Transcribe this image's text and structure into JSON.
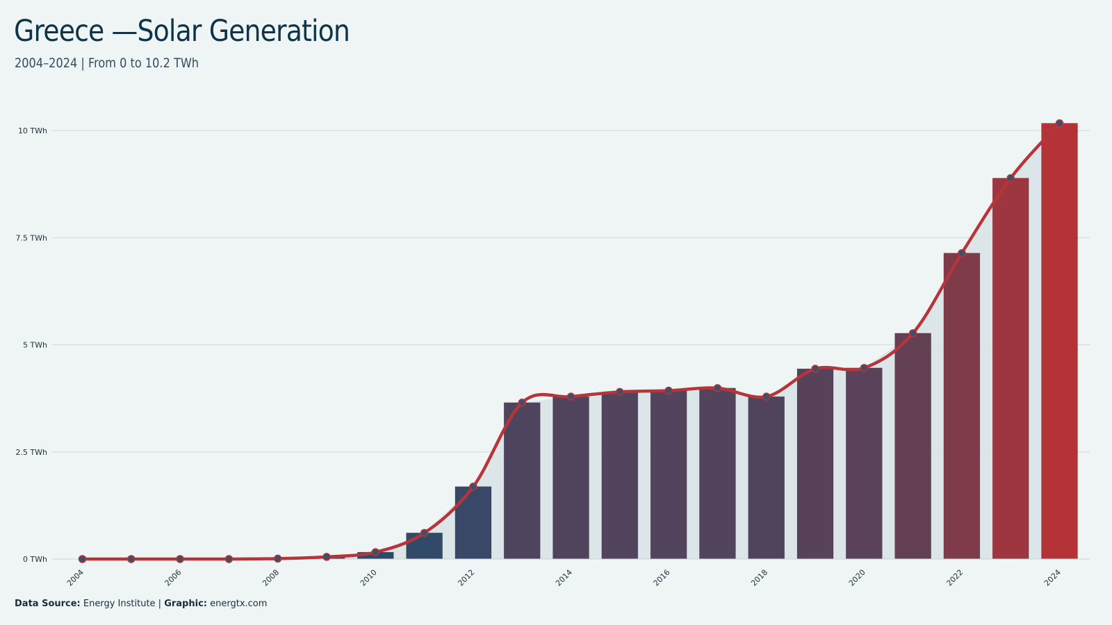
{
  "header": {
    "title": "Greece —Solar Generation",
    "subtitle": "2004–2024 | From 0 to 10.2 TWh"
  },
  "footer": {
    "source_label": "Data Source:",
    "source_value": "Energy Institute |",
    "graphic_label": "Graphic:",
    "graphic_value": "energtx.com"
  },
  "chart_data": {
    "type": "bar",
    "title": "Greece —Solar Generation",
    "subtitle": "2004–2024 | From 0 to 10.2 TWh",
    "xlabel": "",
    "ylabel": "",
    "unit": "TWh",
    "ylim": [
      0,
      10.5
    ],
    "y_ticks": [
      0,
      2.5,
      5,
      7.5,
      10
    ],
    "y_tick_labels": [
      "0 TWh",
      "2.5 TWh",
      "5 TWh",
      "7.5 TWh",
      "10 TWh"
    ],
    "x_tick_labels": [
      "2004",
      "2006",
      "2008",
      "2010",
      "2012",
      "2014",
      "2016",
      "2018",
      "2020",
      "2022",
      "2024"
    ],
    "categories": [
      "2004",
      "2005",
      "2006",
      "2007",
      "2008",
      "2009",
      "2010",
      "2011",
      "2012",
      "2013",
      "2014",
      "2015",
      "2016",
      "2017",
      "2018",
      "2019",
      "2020",
      "2021",
      "2022",
      "2023",
      "2024"
    ],
    "values": [
      0.0,
      0.0,
      0.0,
      0.0,
      0.01,
      0.05,
      0.16,
      0.61,
      1.69,
      3.65,
      3.79,
      3.9,
      3.93,
      3.99,
      3.79,
      4.44,
      4.46,
      5.27,
      7.14,
      8.89,
      10.17
    ],
    "overlay": "line with markers and shaded area",
    "grid": "horizontal",
    "colors": {
      "line": "#b5353a",
      "bar_low": "#2e4a6a",
      "bar_high": "#b53236",
      "area": "#d9e3e7",
      "marker": "#3f4f68"
    }
  }
}
